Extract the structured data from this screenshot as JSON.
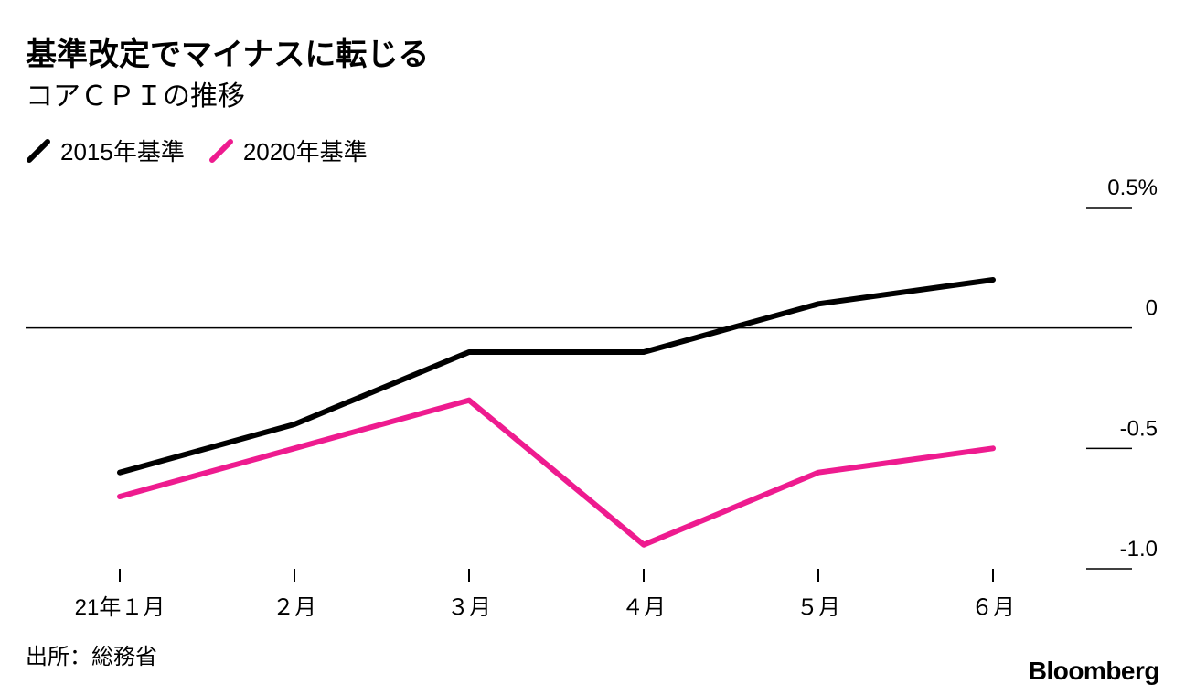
{
  "title": "基準改定でマイナスに転じる",
  "subtitle": "コアＣＰＩの推移",
  "source": "出所：総務省",
  "brand": "Bloomberg",
  "colors": {
    "series_2015": "#000000",
    "series_2020": "#ee1b8f",
    "zero_line": "#000000"
  },
  "chart_data": {
    "type": "line",
    "title": "基準改定でマイナスに転じる",
    "subtitle": "コアＣＰＩの推移",
    "categories": [
      "21年１月",
      "２月",
      "３月",
      "４月",
      "５月",
      "６月"
    ],
    "series": [
      {
        "name": "2015年基準",
        "values": [
          -0.6,
          -0.4,
          -0.1,
          -0.1,
          0.1,
          0.2
        ]
      },
      {
        "name": "2020年基準",
        "values": [
          -0.7,
          -0.5,
          -0.3,
          -0.9,
          -0.6,
          -0.5
        ]
      }
    ],
    "y_ticks": [
      {
        "value": 0.5,
        "label": "0.5%"
      },
      {
        "value": 0,
        "label": "0"
      },
      {
        "value": -0.5,
        "label": "-0.5"
      },
      {
        "value": -1.0,
        "label": "-1.0"
      }
    ],
    "ylim": [
      -1.0,
      0.5
    ],
    "xlabel": "",
    "ylabel": "",
    "legend_position": "top-left",
    "y_axis_side": "right"
  }
}
